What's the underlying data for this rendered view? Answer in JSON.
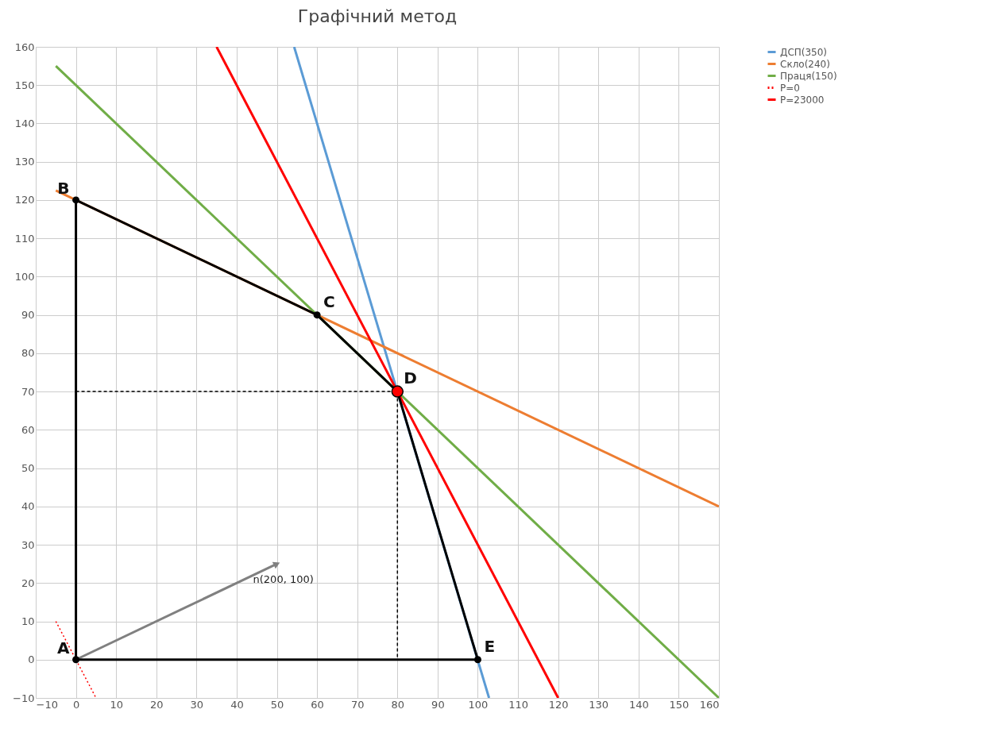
{
  "chart_data": {
    "type": "line",
    "title": "Графічний метод",
    "xlim": [
      -10,
      160
    ],
    "ylim": [
      -10,
      160
    ],
    "xticks": [
      -10,
      0,
      10,
      20,
      30,
      40,
      50,
      60,
      70,
      80,
      90,
      100,
      110,
      120,
      130,
      140,
      150,
      160
    ],
    "yticks": [
      -10,
      0,
      10,
      20,
      30,
      40,
      50,
      60,
      70,
      80,
      90,
      100,
      110,
      120,
      130,
      140,
      150,
      160
    ],
    "grid": true,
    "legend": "right",
    "series": [
      {
        "name": "ДСП(350)",
        "color": "#5b9bd5",
        "x": [
          54.3,
          102.8
        ],
        "values": [
          160,
          -10
        ]
      },
      {
        "name": "Скло(240)",
        "color": "#ed7d31",
        "x": [
          -5,
          160
        ],
        "values": [
          122.5,
          40
        ]
      },
      {
        "name": "Праця(150)",
        "color": "#70ad47",
        "x": [
          -5,
          160
        ],
        "values": [
          155,
          -10
        ]
      },
      {
        "name": "P=0",
        "color": "#ff0000",
        "line_style": "dotted",
        "x": [
          -5,
          5
        ],
        "values": [
          10,
          -10
        ]
      },
      {
        "name": "P=23000",
        "color": "#ff0000",
        "x": [
          35,
          120
        ],
        "values": [
          160,
          -10
        ]
      },
      {
        "color": "#000000",
        "line_style": "dashed",
        "x": [
          0,
          80,
          80
        ],
        "values": [
          70,
          70,
          0
        ]
      },
      {
        "color": "#808080",
        "marker": "triangle",
        "x": [
          0,
          50
        ],
        "values": [
          0,
          25
        ]
      },
      {
        "color": "#000000",
        "marker": "circle",
        "x": [
          0,
          0,
          60,
          80,
          100
        ],
        "values": [
          0,
          120,
          90,
          70,
          0
        ]
      },
      {
        "color": "#000000",
        "x": [
          0,
          100
        ],
        "values": [
          0,
          0
        ]
      },
      {
        "type": "scatter",
        "color": "#ff0000",
        "marker": "circle",
        "x": [
          80
        ],
        "values": [
          70
        ]
      }
    ],
    "annotations": [
      {
        "text": "A",
        "x": 0,
        "y": 0
      },
      {
        "text": "B",
        "x": 0,
        "y": 120
      },
      {
        "text": "C",
        "x": 60,
        "y": 90
      },
      {
        "text": "D",
        "x": 80,
        "y": 70
      },
      {
        "text": "E",
        "x": 100,
        "y": 0
      },
      {
        "text": "n(200, 100)",
        "x": 50,
        "y": 25
      }
    ]
  }
}
